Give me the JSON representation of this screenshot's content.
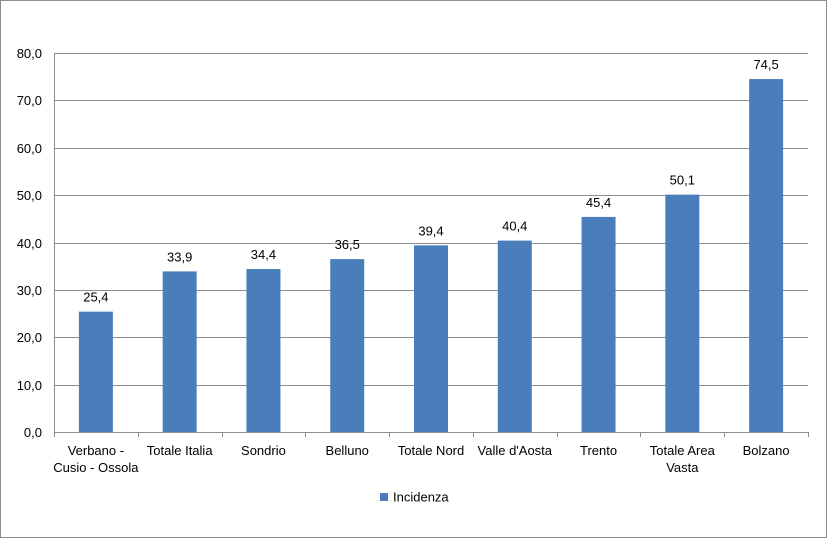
{
  "chart_data": {
    "type": "bar",
    "categories": [
      [
        "Verbano -",
        "Cusio - Ossola"
      ],
      [
        "Totale Italia"
      ],
      [
        "Sondrio"
      ],
      [
        "Belluno"
      ],
      [
        "Totale Nord"
      ],
      [
        "Valle d'Aosta"
      ],
      [
        "Trento"
      ],
      [
        "Totale Area",
        "Vasta"
      ],
      [
        "Bolzano"
      ]
    ],
    "series": [
      {
        "name": "Incidenza",
        "color": "#4a7ebb",
        "values": [
          25.4,
          33.9,
          34.4,
          36.5,
          39.4,
          40.4,
          45.4,
          50.1,
          74.5
        ],
        "value_labels": [
          "25,4",
          "33,9",
          "34,4",
          "36,5",
          "39,4",
          "40,4",
          "45,4",
          "50,1",
          "74,5"
        ]
      }
    ],
    "ylim": [
      0,
      80
    ],
    "yticks": [
      0,
      10,
      20,
      30,
      40,
      50,
      60,
      70,
      80
    ],
    "ytick_labels": [
      "0,0",
      "10,0",
      "20,0",
      "30,0",
      "40,0",
      "50,0",
      "60,0",
      "70,0",
      "80,0"
    ],
    "grid": true,
    "legend_position": "bottom"
  }
}
